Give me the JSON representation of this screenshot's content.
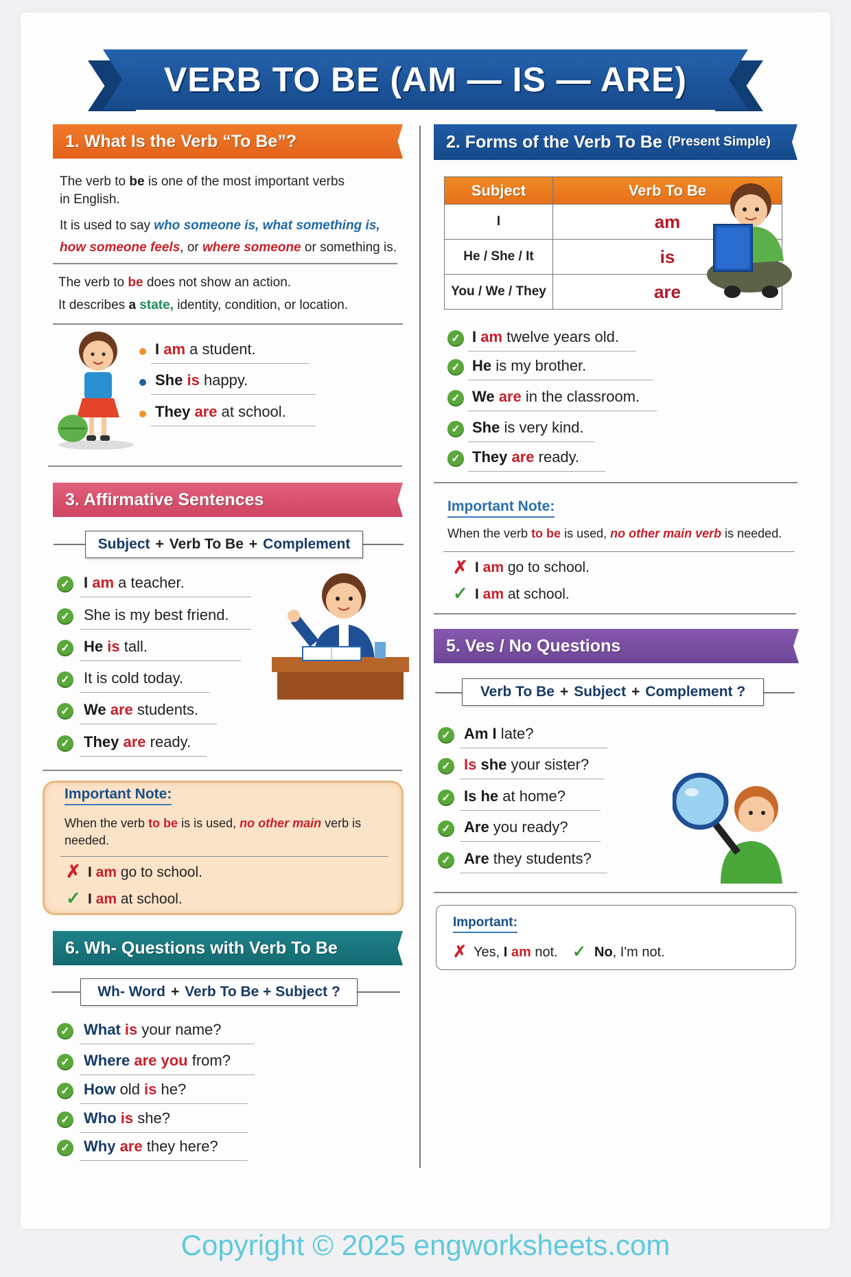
{
  "title": "VERB TO BE (AM — IS — ARE)",
  "colors": {
    "orange": "#e96b1f",
    "blue": "#1b549b",
    "pink": "#d9506e",
    "purple": "#7b4fa5",
    "teal": "#1b757c",
    "red": "#c8202a",
    "green_check": "#5aa83a"
  },
  "section1": {
    "heading": "1. What Is the Verb “To Be”?",
    "lines": [
      [
        {
          "t": "The verb to "
        },
        {
          "t": "be",
          "s": "b"
        },
        {
          "t": " is one of the most important verbs"
        }
      ],
      [
        {
          "t": "in English."
        }
      ],
      [
        {
          "t": "It is used to say "
        },
        {
          "t": "who someone is, what something is,",
          "s": "bl"
        }
      ],
      [
        {
          "t": "how someone feels",
          "s": "ri"
        },
        {
          "t": ", or "
        },
        {
          "t": "where someone",
          "s": "ri"
        },
        {
          "t": " or something is."
        }
      ],
      [
        {
          "t": "The verb to "
        },
        {
          "t": "be",
          "s": "r"
        },
        {
          "t": " does not show an action."
        }
      ],
      [
        {
          "t": "It describes "
        },
        {
          "t": "a ",
          "s": "b"
        },
        {
          "t": "state,",
          "s": "g"
        },
        {
          "t": " identity, condition, or location."
        }
      ]
    ],
    "examples": [
      {
        "bullet": "#f0902a",
        "seg": [
          {
            "t": "I ",
            "s": "b"
          },
          {
            "t": "am",
            "s": "r"
          },
          {
            "t": " a student."
          }
        ]
      },
      {
        "bullet": "#1f5f9a",
        "seg": [
          {
            "t": "She ",
            "s": "b"
          },
          {
            "t": "is",
            "s": "r"
          },
          {
            "t": " happy."
          }
        ]
      },
      {
        "bullet": "#f0902a",
        "seg": [
          {
            "t": "They ",
            "s": "b"
          },
          {
            "t": "are",
            "s": "r"
          },
          {
            "t": " at school."
          }
        ]
      }
    ]
  },
  "section2": {
    "heading": "2. Forms of the Verb To Be",
    "heading_small": "(Present Simple)",
    "table": {
      "headers": [
        "Subject",
        "Verb To Be"
      ],
      "rows": [
        [
          "I",
          "am"
        ],
        [
          "He / She / It",
          "is"
        ],
        [
          "You / We / They",
          "are"
        ]
      ]
    },
    "examples": [
      [
        {
          "t": "I ",
          "s": "b"
        },
        {
          "t": "am",
          "s": "r"
        },
        {
          "t": " twelve years old."
        }
      ],
      [
        {
          "t": "He",
          "s": "b"
        },
        {
          "t": " is my brother."
        }
      ],
      [
        {
          "t": "We ",
          "s": "b"
        },
        {
          "t": "are",
          "s": "r"
        },
        {
          "t": " in the classroom."
        }
      ],
      [
        {
          "t": "She",
          "s": "b"
        },
        {
          "t": " is very kind."
        }
      ],
      [
        {
          "t": "They ",
          "s": "b"
        },
        {
          "t": "are",
          "s": "r"
        },
        {
          "t": " ready."
        }
      ]
    ]
  },
  "note_right": {
    "title": "Important Note:",
    "text": [
      {
        "t": "When the verb "
      },
      {
        "t": "to be",
        "s": "r"
      },
      {
        "t": " is used, "
      },
      {
        "t": "no other main verb",
        "s": "ri"
      },
      {
        "t": " is needed."
      }
    ],
    "wrong": [
      {
        "t": "I ",
        "s": "b"
      },
      {
        "t": "am",
        "s": "r"
      },
      {
        "t": " go to school."
      }
    ],
    "right": [
      {
        "t": "I ",
        "s": "b"
      },
      {
        "t": "am",
        "s": "r"
      },
      {
        "t": " at school."
      }
    ]
  },
  "section3": {
    "heading": "3. Affirmative Sentences",
    "formula": [
      "Subject",
      "+",
      "Verb To Be",
      "+",
      "Complement"
    ],
    "examples": [
      [
        {
          "t": "I ",
          "s": "b"
        },
        {
          "t": "am",
          "s": "r"
        },
        {
          "t": " a teacher."
        }
      ],
      [
        {
          "t": "She is my best friend."
        }
      ],
      [
        {
          "t": "He ",
          "s": "b"
        },
        {
          "t": "is",
          "s": "r"
        },
        {
          "t": " tall."
        }
      ],
      [
        {
          "t": "It is cold today."
        }
      ],
      [
        {
          "t": "We ",
          "s": "b"
        },
        {
          "t": "are",
          "s": "r"
        },
        {
          "t": " students."
        }
      ],
      [
        {
          "t": "They ",
          "s": "b"
        },
        {
          "t": "are",
          "s": "r"
        },
        {
          "t": " ready."
        }
      ]
    ]
  },
  "note_left": {
    "title": "Important Note:",
    "text1": [
      {
        "t": "When the verb "
      },
      {
        "t": "to be",
        "s": "r"
      },
      {
        "t": " is is used, "
      },
      {
        "t": "no other main",
        "s": "ri"
      },
      {
        "t": " verb is"
      }
    ],
    "text2": [
      {
        "t": "needed."
      }
    ],
    "wrong": [
      {
        "t": "I ",
        "s": "b"
      },
      {
        "t": "am",
        "s": "r"
      },
      {
        "t": " go to school."
      }
    ],
    "right": [
      {
        "t": "I ",
        "s": "b"
      },
      {
        "t": "am",
        "s": "r"
      },
      {
        "t": " at school."
      }
    ]
  },
  "section5": {
    "heading": "5. Ves / No Questions",
    "formula": [
      "Verb To Be",
      "+",
      "Subject",
      "+",
      "Complement ?"
    ],
    "examples": [
      [
        {
          "t": "Am I",
          "s": "b"
        },
        {
          "t": " late?"
        }
      ],
      [
        {
          "t": "Is",
          "s": "r"
        },
        {
          "t": " she",
          "s": "b"
        },
        {
          "t": " your sister?"
        }
      ],
      [
        {
          "t": "Is he",
          "s": "b"
        },
        {
          "t": " at home?"
        }
      ],
      [
        {
          "t": "Are",
          "s": "b"
        },
        {
          "t": " you ready?"
        }
      ],
      [
        {
          "t": "Are",
          "s": "b"
        },
        {
          "t": " they students?"
        }
      ]
    ],
    "important": {
      "title": "Important:",
      "wrong": [
        {
          "t": "Yes, "
        },
        {
          "t": "I ",
          "s": "b"
        },
        {
          "t": "am",
          "s": "r"
        },
        {
          "t": " not."
        }
      ],
      "right": [
        {
          "t": "No",
          "s": "b"
        },
        {
          "t": ", I'm not."
        }
      ]
    }
  },
  "section6": {
    "heading": "6. Wh- Questions with Verb To Be",
    "formula": [
      "Wh- Word",
      "+",
      "Verb To Be + Subject ?"
    ],
    "examples": [
      [
        {
          "t": "What",
          "s": "nv"
        },
        {
          "t": " is",
          "s": "r"
        },
        {
          "t": " your name?"
        }
      ],
      [
        {
          "t": "Where",
          "s": "nv"
        },
        {
          "t": " are you",
          "s": "r"
        },
        {
          "t": " from?"
        }
      ],
      [
        {
          "t": "How",
          "s": "nv"
        },
        {
          "t": " old "
        },
        {
          "t": "is",
          "s": "r"
        },
        {
          "t": " he?"
        }
      ],
      [
        {
          "t": "Who",
          "s": "nv"
        },
        {
          "t": " is",
          "s": "r"
        },
        {
          "t": " she?"
        }
      ],
      [
        {
          "t": "Why",
          "s": "nv"
        },
        {
          "t": " are",
          "s": "r"
        },
        {
          "t": " they here?"
        }
      ]
    ]
  },
  "footer": {
    "copyright": "Copyright © 2025 engworksheets.com"
  }
}
